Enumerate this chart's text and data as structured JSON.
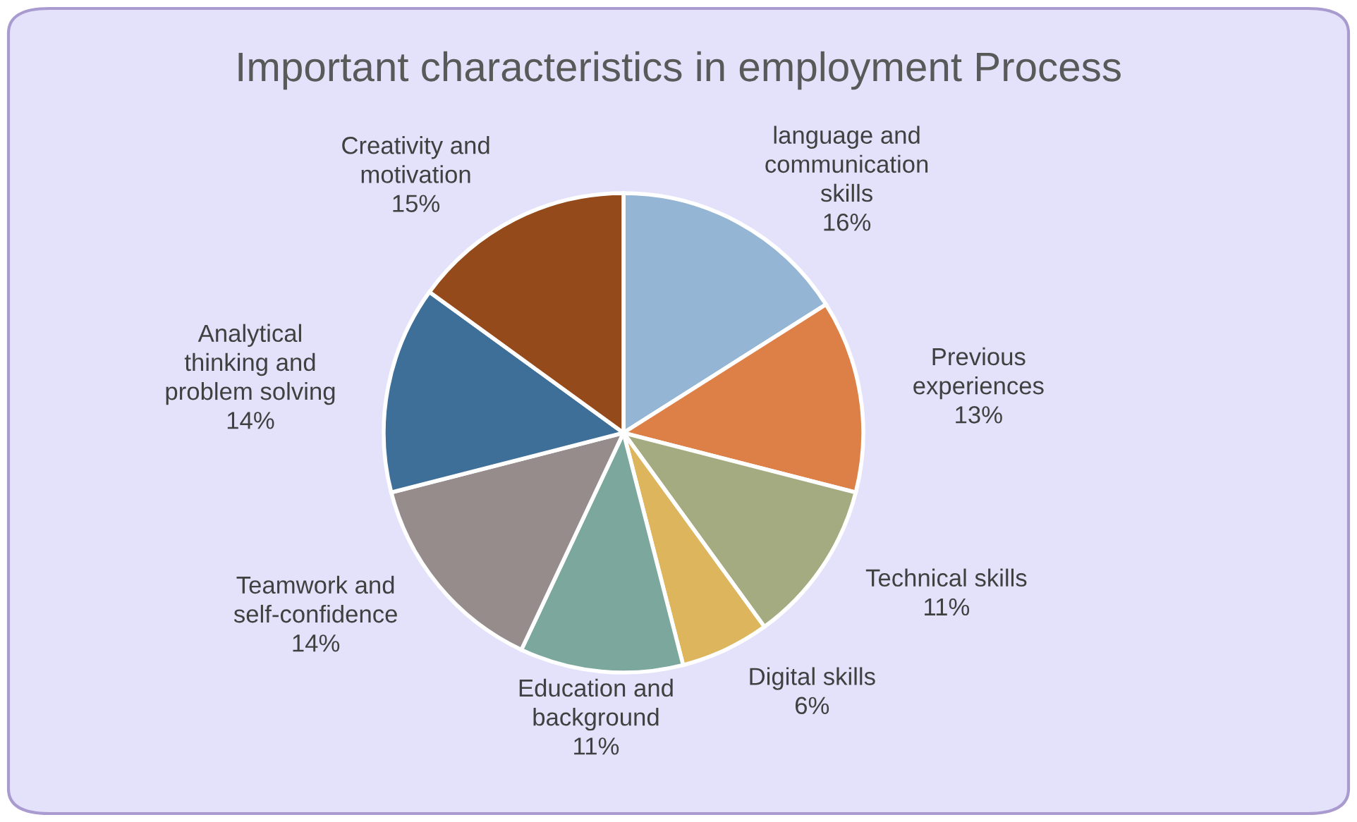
{
  "chart_data": {
    "type": "pie",
    "title": "Important characteristics in employment Process",
    "categories": [
      "language and\ncommunication\nskills",
      "Previous\nexperiences",
      "Technical skills",
      "Digital skills",
      "Education and\nbackground",
      "Teamwork and\nself-confidence",
      "Analytical\nthinking and\nproblem solving",
      "Creativity and\nmotivation"
    ],
    "values": [
      16,
      13,
      11,
      6,
      11,
      14,
      14,
      15
    ],
    "colors": [
      "#94b5d3",
      "#dd8047",
      "#a5ab80",
      "#dcb55c",
      "#7ba79d",
      "#968c8c",
      "#3e6f98",
      "#944a1a"
    ],
    "value_labels": [
      "16%",
      "13%",
      "11%",
      "6%",
      "11%",
      "14%",
      "14%",
      "15%"
    ],
    "legend": false
  }
}
